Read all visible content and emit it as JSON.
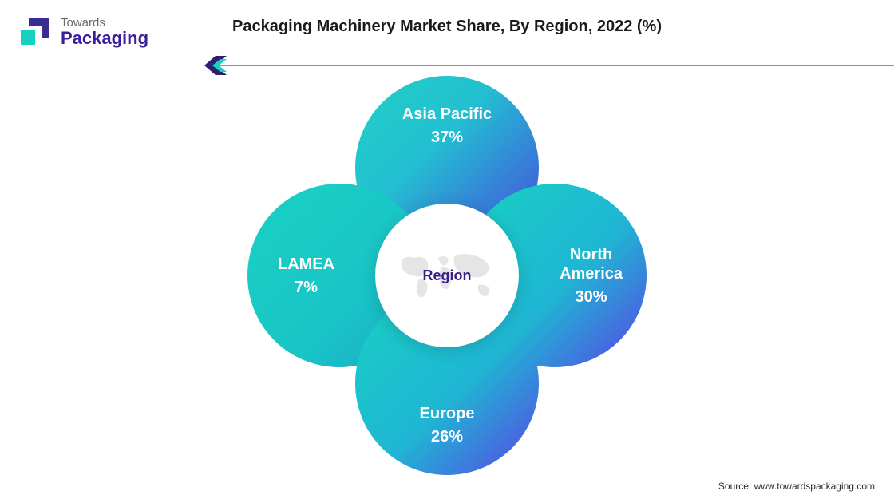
{
  "brand": {
    "line1": "Towards",
    "line2": "Packaging",
    "line1_color": "#6a6a6a",
    "line2_color": "#3b1ea0",
    "mark_purple": "#3b2a8f",
    "mark_teal": "#17d0c0"
  },
  "title": "Packaging Machinery Market Share, By Region, 2022 (%)",
  "divider": {
    "line_color": "#17c6b9",
    "chevron_outer": "#2f2070",
    "chevron_inner": "#17d0c0"
  },
  "diagram": {
    "type": "infographic",
    "center_label": "Region",
    "center_label_color": "#3a1e88",
    "center_bg": "#ffffff",
    "petal_text_color": "#ffffff",
    "petal_label_fontsize": 20,
    "gradient_teal": "#18d0c2",
    "gradient_purple": "#5a42e4",
    "petals": [
      {
        "position": "top",
        "label": "Asia Pacific",
        "value": "37%"
      },
      {
        "position": "right",
        "label": "North\nAmerica",
        "value": "30%"
      },
      {
        "position": "bottom",
        "label": "Europe",
        "value": "26%"
      },
      {
        "position": "left",
        "label": "LAMEA",
        "value": "7%"
      }
    ]
  },
  "source": "Source: www.towardspackaging.com"
}
